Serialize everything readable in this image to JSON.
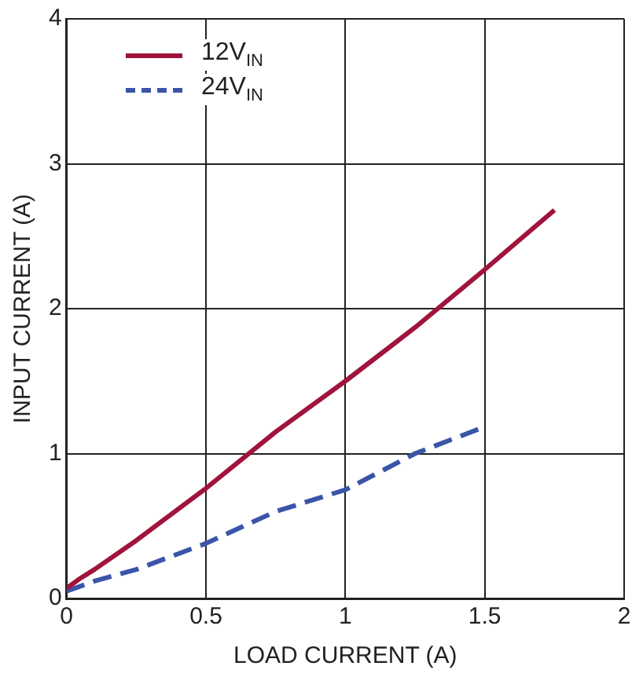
{
  "chart_data": {
    "type": "line",
    "xlabel": "LOAD CURRENT (A)",
    "ylabel": "INPUT CURRENT (A)",
    "xlim": [
      0,
      2
    ],
    "xticks": [
      0,
      0.5,
      1,
      1.5,
      2
    ],
    "ylim": [
      0,
      4
    ],
    "yticks": [
      0,
      1,
      2,
      3,
      4
    ],
    "grid": true,
    "legend": "top left",
    "marker": "none",
    "series": [
      {
        "name": "12V$_{IN}$",
        "color": "#a0143c",
        "line_style": "solid",
        "x": [
          0,
          0.05,
          0.1,
          0.25,
          0.5,
          0.75,
          1,
          1.25,
          1.5,
          1.75
        ],
        "values": [
          0.07,
          0.14,
          0.2,
          0.4,
          0.76,
          1.15,
          1.5,
          1.87,
          2.27,
          2.68
        ]
      },
      {
        "name": "24V$_{IN}$",
        "color": "#3a55a8",
        "line_style": "dashed",
        "x": [
          0,
          0.1,
          0.25,
          0.5,
          0.75,
          1,
          1.25,
          1.48
        ],
        "values": [
          0.05,
          0.12,
          0.2,
          0.38,
          0.6,
          0.75,
          1.0,
          1.17
        ]
      }
    ]
  }
}
